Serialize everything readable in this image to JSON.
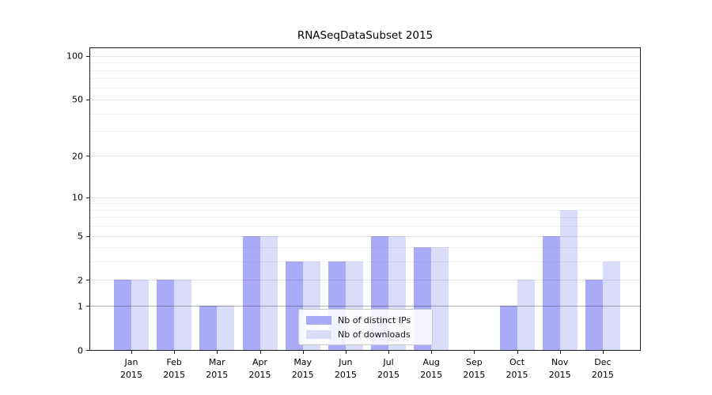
{
  "title": "RNASeqDataSubset 2015",
  "chart_data": {
    "type": "bar",
    "title": "RNASeqDataSubset 2015",
    "y_scale": "log1p",
    "ylim": [
      0,
      113
    ],
    "y_ticks": [
      0,
      1,
      2,
      5,
      10,
      20,
      50,
      100
    ],
    "grid": true,
    "months": [
      "Jan",
      "Feb",
      "Mar",
      "Apr",
      "May",
      "Jun",
      "Jul",
      "Aug",
      "Sep",
      "Oct",
      "Nov",
      "Dec"
    ],
    "year": "2015",
    "series": [
      {
        "name": "Nb of distinct IPs",
        "color": "#a9abf8",
        "values": [
          2,
          2,
          1,
          5,
          3,
          3,
          5,
          4,
          0,
          1,
          5,
          2
        ]
      },
      {
        "name": "Nb of downloads",
        "color": "#dbdcfa",
        "values": [
          2,
          2,
          1,
          5,
          3,
          3,
          5,
          4,
          0,
          2,
          8,
          3
        ]
      }
    ],
    "legend_position": "lower center",
    "colors": {
      "frame": "#1a1a1a",
      "background": "#ffffff"
    }
  }
}
